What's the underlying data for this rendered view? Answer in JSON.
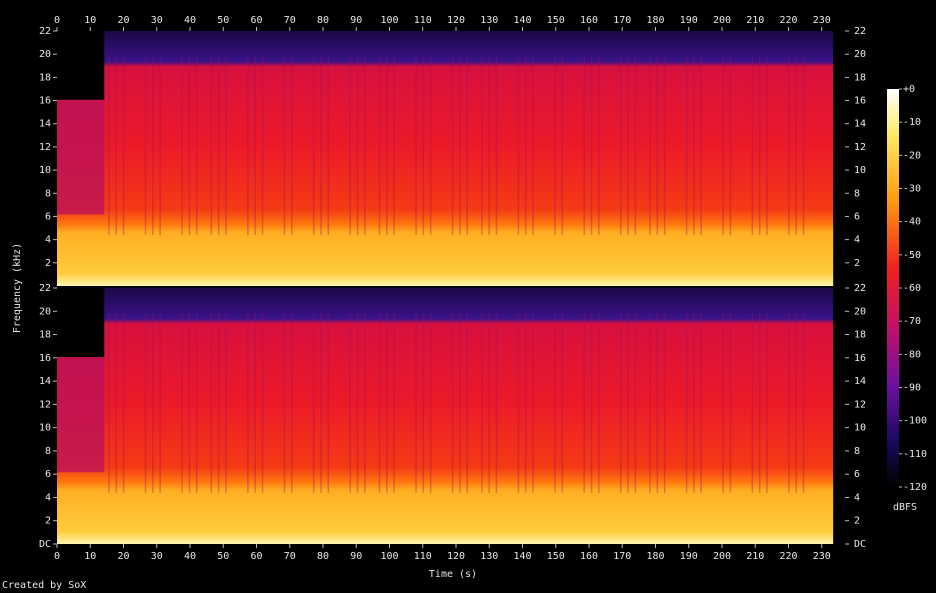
{
  "chart_data": {
    "type": "spectrogram",
    "x_label": "Time (s)",
    "y_label": "Frequency (kHz)",
    "xlim": [
      0,
      237
    ],
    "xticks": [
      0,
      10,
      20,
      30,
      40,
      50,
      60,
      70,
      80,
      90,
      100,
      110,
      120,
      130,
      140,
      150,
      160,
      170,
      180,
      190,
      200,
      210,
      220,
      230
    ],
    "channels": [
      {
        "ylim": [
          0,
          22
        ],
        "yticks": [
          2,
          4,
          6,
          8,
          10,
          12,
          14,
          16,
          18,
          20,
          22
        ]
      },
      {
        "ylim": [
          0,
          22
        ],
        "yticks": [
          {
            "value": 0,
            "label": "DC"
          },
          2,
          4,
          6,
          8,
          10,
          12,
          14,
          16,
          18,
          20,
          22
        ]
      }
    ],
    "colorbar": {
      "label": "dBFS",
      "lim": [
        -120,
        0
      ],
      "ticks": [
        {
          "value": 0,
          "label": "+0"
        },
        -10,
        -20,
        -30,
        -40,
        -50,
        -60,
        -70,
        -80,
        -90,
        -100,
        -110,
        -120
      ]
    }
  },
  "footer": "Created by SoX"
}
